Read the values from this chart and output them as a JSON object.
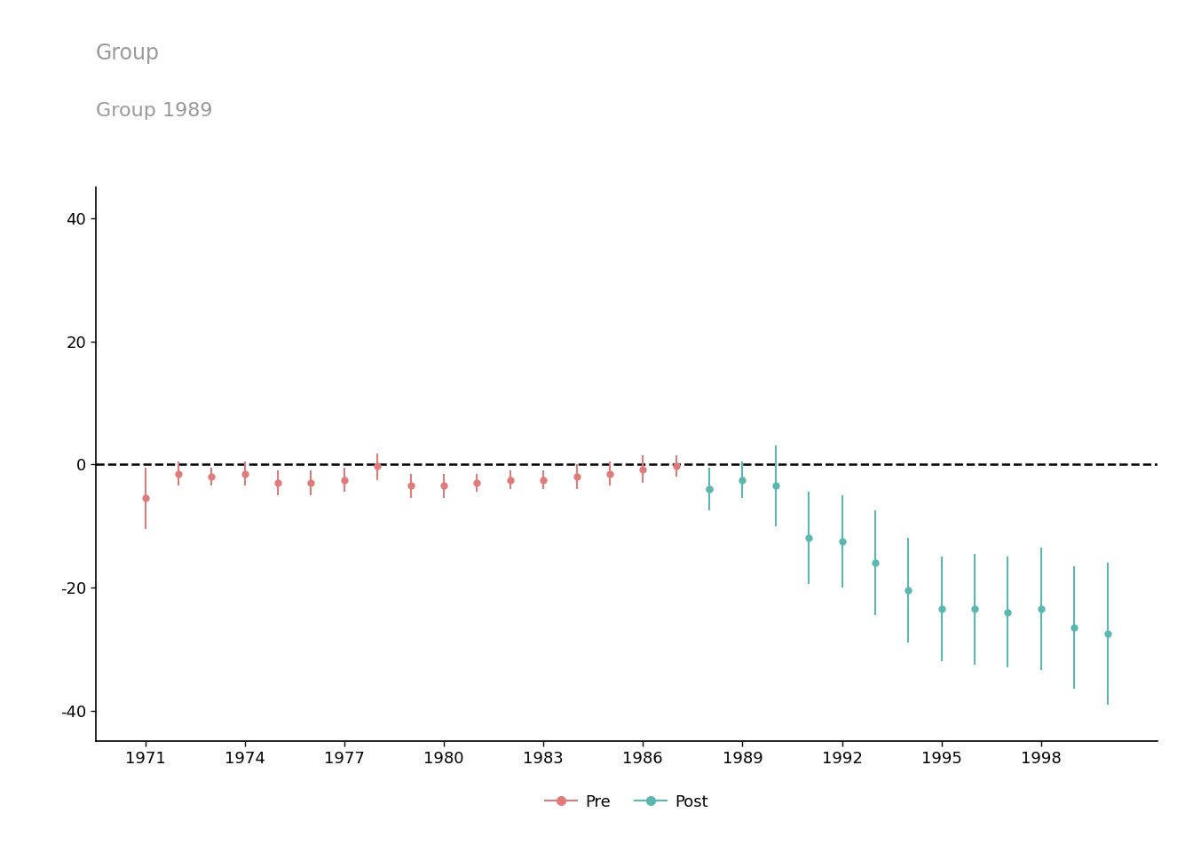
{
  "title_top": "Group",
  "title_sub": "Group 1989",
  "title_color": "#999999",
  "pre_color": "#E07B7B",
  "post_color": "#5BB8B0",
  "ylim": [
    -45,
    45
  ],
  "yticks": [
    -40,
    -20,
    0,
    20,
    40
  ],
  "pre_data": {
    "years": [
      1971,
      1972,
      1973,
      1974,
      1975,
      1976,
      1977,
      1978,
      1979,
      1980,
      1981,
      1982,
      1983,
      1984,
      1985,
      1986,
      1987,
      1988
    ],
    "values": [
      -5.5,
      -1.5,
      -2.0,
      -1.5,
      -3.0,
      -3.0,
      -2.5,
      -0.3,
      -3.5,
      -3.5,
      -3.0,
      -2.5,
      -2.5,
      -2.0,
      -1.5,
      -0.8,
      -0.2,
      -4.0
    ],
    "ci_lower": [
      -10.5,
      -3.5,
      -3.5,
      -3.5,
      -5.0,
      -5.0,
      -4.5,
      -2.5,
      -5.5,
      -5.5,
      -4.5,
      -4.0,
      -4.0,
      -4.0,
      -3.5,
      -3.0,
      -2.0,
      -7.5
    ],
    "ci_upper": [
      -0.5,
      0.5,
      -0.5,
      0.5,
      -1.0,
      -1.0,
      -0.5,
      1.8,
      -1.5,
      -1.5,
      -1.5,
      -1.0,
      -1.0,
      0.0,
      0.5,
      1.4,
      1.5,
      -0.5
    ]
  },
  "post_data": {
    "years": [
      1988,
      1989,
      1990,
      1991,
      1992,
      1993,
      1994,
      1995,
      1996,
      1997,
      1998,
      1999,
      2000
    ],
    "values": [
      -4.0,
      -2.5,
      -3.5,
      -12.0,
      -12.5,
      -16.0,
      -20.5,
      -23.5,
      -23.5,
      -24.0,
      -23.5,
      -26.5,
      -27.5
    ],
    "ci_lower": [
      -7.5,
      -5.5,
      -10.0,
      -19.5,
      -20.0,
      -24.5,
      -29.0,
      -32.0,
      -32.5,
      -33.0,
      -33.5,
      -36.5,
      -39.0
    ],
    "ci_upper": [
      -0.5,
      0.5,
      3.0,
      -4.5,
      -5.0,
      -7.5,
      -12.0,
      -15.0,
      -14.5,
      -15.0,
      -13.5,
      -16.5,
      -16.0
    ]
  },
  "background_color": "#ffffff",
  "legend_labels": [
    "Pre",
    "Post"
  ],
  "xlabel_ticks": [
    1971,
    1974,
    1977,
    1980,
    1983,
    1986,
    1989,
    1992,
    1995,
    1998
  ],
  "xlim": [
    1969.5,
    2001.5
  ]
}
